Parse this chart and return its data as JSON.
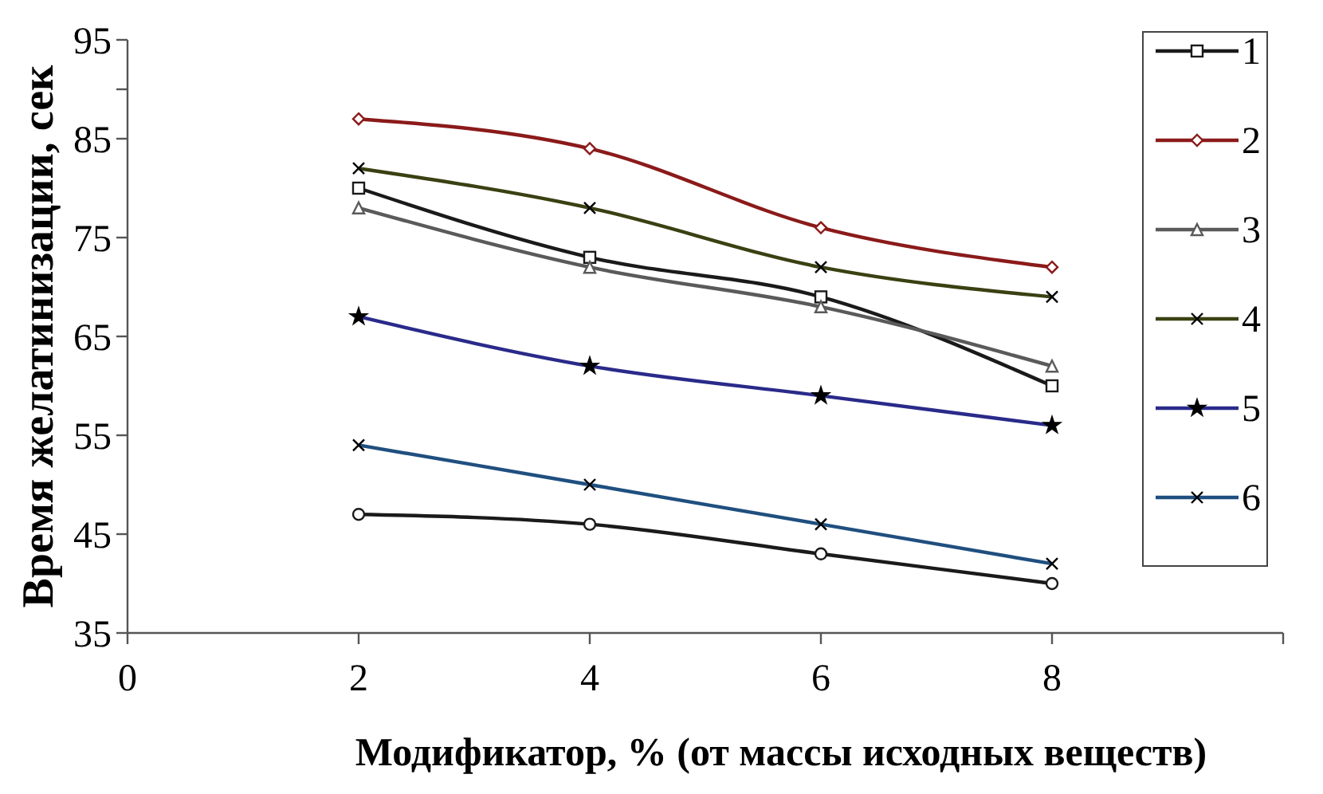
{
  "chart_data": {
    "type": "line",
    "xlabel": "Модификатор, % (от массы исходных веществ)",
    "ylabel": "Время желатинизации, сек",
    "x": [
      2,
      4,
      6,
      8
    ],
    "xlim": [
      0,
      10
    ],
    "xticks": [
      0,
      2,
      4,
      6,
      8,
      {
        "value": 10,
        "label": null
      }
    ],
    "ylim": [
      35,
      95
    ],
    "yticks": [
      35,
      45,
      55,
      65,
      75,
      85,
      {
        "value": 90,
        "label": null
      },
      95
    ],
    "grid": false,
    "legend": "right",
    "line_style": "solid",
    "series": [
      {
        "name": "1",
        "color": "#1a1a1a",
        "marker": "square",
        "values": [
          80,
          73,
          69,
          60
        ]
      },
      {
        "name": "2",
        "color": "#8b1a1a",
        "marker": "diamond",
        "values": [
          87,
          84,
          76,
          72
        ]
      },
      {
        "name": "3",
        "color": "#5a5a5a",
        "marker": "triangle",
        "values": [
          78,
          72,
          68,
          62
        ]
      },
      {
        "name": "4",
        "color": "#3b4012",
        "marker": "cross",
        "values": [
          82,
          78,
          72,
          69
        ]
      },
      {
        "name": "5",
        "color": "#2a2a8a",
        "marker": "star",
        "values": [
          67,
          62,
          59,
          56
        ]
      },
      {
        "name": "6",
        "color": "#1f4f7f",
        "marker": "cross",
        "values": [
          54,
          50,
          46,
          42
        ]
      },
      {
        "color": "#1a1a1a",
        "marker": "circle",
        "values": [
          47,
          46,
          43,
          40
        ]
      }
    ]
  }
}
